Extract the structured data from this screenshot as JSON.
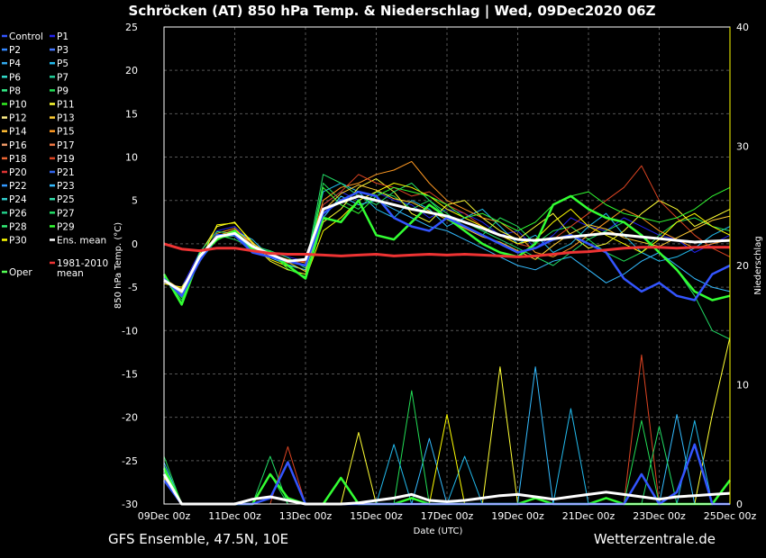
{
  "header": {
    "title": "Schröcken  (AT)  850 hPa Temp. & Niederschlag | Wed, 09Dec2020 06Z"
  },
  "footer": {
    "left": "GFS Ensemble, 47.5N, 10E",
    "right": "Wetterzentrale.de"
  },
  "chart_data": {
    "type": "line",
    "title": "Schröcken  (AT)  850 hPa Temp. & Niederschlag | Wed, 09Dec2020 06Z",
    "xlabel": "Date (UTC)",
    "ylabel": "850 hPa Temp. (°C)",
    "y2label": "Niederschlag",
    "x_ticks": [
      "09Dec 00z",
      "11Dec 00z",
      "13Dec 00z",
      "15Dec 00z",
      "17Dec 00z",
      "19Dec 00z",
      "21Dec 00z",
      "23Dec 00z",
      "25Dec 00z"
    ],
    "y_ticks": [
      25,
      20,
      15,
      10,
      5,
      0,
      -5,
      -10,
      -15,
      -20,
      -25,
      -30
    ],
    "y2_ticks": [
      40,
      30,
      20,
      10,
      0
    ],
    "ylim": [
      -30,
      25
    ],
    "y2lim": [
      0,
      40
    ],
    "grid": true,
    "legend_position": "left",
    "legend": [
      {
        "label": "Control",
        "color": "#3355ff"
      },
      {
        "label": "P1",
        "color": "#2222ee"
      },
      {
        "label": "P2",
        "color": "#3388ff"
      },
      {
        "label": "P3",
        "color": "#4477ff"
      },
      {
        "label": "P4",
        "color": "#33aaee"
      },
      {
        "label": "P5",
        "color": "#22bbee"
      },
      {
        "label": "P6",
        "color": "#33ddcc"
      },
      {
        "label": "P7",
        "color": "#22cc99"
      },
      {
        "label": "P8",
        "color": "#33ee88"
      },
      {
        "label": "P9",
        "color": "#22dd55"
      },
      {
        "label": "P10",
        "color": "#33ee22"
      },
      {
        "label": "P11",
        "color": "#ffff33"
      },
      {
        "label": "P12",
        "color": "#ffee88"
      },
      {
        "label": "P13",
        "color": "#ffcc33"
      },
      {
        "label": "P14",
        "color": "#ffbb33"
      },
      {
        "label": "P15",
        "color": "#ff9922"
      },
      {
        "label": "P16",
        "color": "#ee9966"
      },
      {
        "label": "P17",
        "color": "#ee7744"
      },
      {
        "label": "P18",
        "color": "#ee6633"
      },
      {
        "label": "P19",
        "color": "#dd4422"
      },
      {
        "label": "P20",
        "color": "#dd3333"
      },
      {
        "label": "P21",
        "color": "#3366ee"
      },
      {
        "label": "P22",
        "color": "#3399ff"
      },
      {
        "label": "P23",
        "color": "#33bbff"
      },
      {
        "label": "P24",
        "color": "#33cccc"
      },
      {
        "label": "P25",
        "color": "#33ddaa"
      },
      {
        "label": "P26",
        "color": "#22cc88"
      },
      {
        "label": "P27",
        "color": "#22dd66"
      },
      {
        "label": "P28",
        "color": "#33ee77"
      },
      {
        "label": "P29",
        "color": "#33ff33"
      },
      {
        "label": "P30",
        "color": "#ffff00"
      },
      {
        "label": "Ens. mean",
        "color": "#ffffff"
      },
      {
        "label": "Oper",
        "color": "#55ff55"
      },
      {
        "label": "1981-2010 mean",
        "color": "#ee3333"
      }
    ],
    "x_days": [
      0,
      0.5,
      1,
      1.5,
      2,
      2.5,
      3,
      3.5,
      4,
      4.5,
      5,
      5.5,
      6,
      6.5,
      7,
      7.5,
      8,
      8.5,
      9,
      9.5,
      10,
      10.5,
      11,
      11.5,
      12,
      12.5,
      13,
      13.5,
      14,
      14.5,
      15,
      15.5,
      16
    ],
    "series": [
      {
        "name": "Ens. mean",
        "color": "#ffffff",
        "width": 3,
        "values": [
          -4.2,
          -5.5,
          -1.5,
          0.8,
          1.2,
          -0.3,
          -1.2,
          -2.0,
          -1.8,
          4.0,
          4.8,
          5.5,
          5.0,
          4.5,
          4.0,
          3.6,
          3.2,
          2.5,
          1.8,
          1.0,
          0.5,
          0.4,
          0.6,
          0.8,
          1.0,
          1.2,
          1.0,
          0.8,
          0.6,
          0.4,
          0.2,
          0.3,
          0.4
        ]
      },
      {
        "name": "1981-2010 mean",
        "color": "#ee3333",
        "width": 3,
        "values": [
          0.0,
          -0.6,
          -0.8,
          -0.5,
          -0.5,
          -0.8,
          -1.1,
          -1.2,
          -1.2,
          -1.3,
          -1.4,
          -1.3,
          -1.2,
          -1.4,
          -1.3,
          -1.2,
          -1.3,
          -1.2,
          -1.3,
          -1.4,
          -1.5,
          -1.4,
          -1.2,
          -1.0,
          -0.9,
          -0.7,
          -0.5,
          -0.4,
          -0.4,
          -0.5,
          -0.4,
          -0.4,
          -0.4
        ]
      },
      {
        "name": "Oper",
        "color": "#33ff33",
        "width": 2.5,
        "values": [
          -3.5,
          -7.0,
          -1.5,
          0.5,
          1.5,
          -0.5,
          -1.0,
          -2.5,
          -4.0,
          3.0,
          2.5,
          5.0,
          1.0,
          0.5,
          2.5,
          4.5,
          3.0,
          1.5,
          0.0,
          -1.0,
          -1.5,
          0.0,
          4.5,
          5.5,
          4.0,
          3.0,
          2.5,
          1.0,
          -1.0,
          -3.0,
          -5.5,
          -6.5,
          -6.0
        ]
      },
      {
        "name": "Control",
        "color": "#3355ff",
        "width": 2.5,
        "values": [
          -4.0,
          -6.0,
          -2.0,
          1.0,
          1.0,
          -1.0,
          -1.5,
          -2.0,
          -2.5,
          3.5,
          5.0,
          6.0,
          5.5,
          3.0,
          2.0,
          1.5,
          3.0,
          2.0,
          1.0,
          0.0,
          -1.0,
          -0.5,
          0.5,
          1.0,
          0.0,
          -1.0,
          -4.0,
          -5.5,
          -4.5,
          -6.0,
          -6.5,
          -3.5,
          -2.5
        ]
      },
      {
        "name": "P1",
        "color": "#2222ee",
        "width": 1,
        "values": [
          -4.5,
          -5.0,
          -1.0,
          1.5,
          2.0,
          0.0,
          -1.0,
          -1.5,
          -2.0,
          4.5,
          6.0,
          5.0,
          6.0,
          5.0,
          4.5,
          3.0,
          4.0,
          3.5,
          2.5,
          1.0,
          1.5,
          -0.5,
          1.0,
          3.0,
          2.0,
          1.5,
          3.0,
          2.0,
          1.0,
          0.5,
          -1.0,
          0.0,
          1.0
        ]
      },
      {
        "name": "P5",
        "color": "#22bbee",
        "width": 1,
        "values": [
          -4.0,
          -5.5,
          -2.0,
          0.5,
          1.5,
          0.5,
          -1.5,
          -2.0,
          -2.5,
          6.0,
          7.0,
          6.0,
          4.0,
          3.0,
          5.0,
          4.0,
          2.0,
          3.0,
          4.0,
          2.0,
          0.0,
          1.0,
          -1.0,
          0.0,
          2.0,
          3.5,
          1.0,
          -1.0,
          -2.0,
          -1.5,
          -0.5,
          1.0,
          2.0
        ]
      },
      {
        "name": "P9",
        "color": "#22dd55",
        "width": 1,
        "values": [
          -3.8,
          -6.5,
          -1.5,
          1.0,
          0.5,
          -0.5,
          -1.0,
          -2.5,
          -3.0,
          7.0,
          5.0,
          4.0,
          6.0,
          5.5,
          4.0,
          5.0,
          3.5,
          2.0,
          1.0,
          3.0,
          2.0,
          0.0,
          1.5,
          2.0,
          0.5,
          -1.0,
          -2.0,
          -1.0,
          1.0,
          2.5,
          3.0,
          2.0,
          1.5
        ]
      },
      {
        "name": "P11",
        "color": "#ffff33",
        "width": 1,
        "values": [
          -4.2,
          -5.8,
          -1.2,
          2.0,
          2.5,
          0.0,
          -2.0,
          -3.0,
          -3.5,
          2.5,
          4.0,
          6.5,
          7.5,
          6.0,
          3.5,
          2.5,
          4.5,
          5.0,
          3.0,
          1.5,
          0.5,
          2.0,
          3.5,
          1.0,
          -0.5,
          0.0,
          1.5,
          3.5,
          5.0,
          4.0,
          2.0,
          3.0,
          4.0
        ]
      },
      {
        "name": "P15",
        "color": "#ff9922",
        "width": 1,
        "values": [
          -4.4,
          -5.2,
          -1.8,
          1.2,
          1.8,
          -0.2,
          -1.2,
          -1.8,
          -2.2,
          5.0,
          6.5,
          7.0,
          8.0,
          8.5,
          9.5,
          7.0,
          5.0,
          4.0,
          3.0,
          2.5,
          1.0,
          -1.0,
          -1.5,
          -0.5,
          1.0,
          2.5,
          4.0,
          3.0,
          1.5,
          0.5,
          -0.5,
          0.0,
          0.5
        ]
      },
      {
        "name": "P19",
        "color": "#dd4422",
        "width": 1,
        "values": [
          -4.1,
          -5.6,
          -1.4,
          0.8,
          1.4,
          -0.4,
          -1.4,
          -2.2,
          -2.0,
          4.5,
          6.0,
          8.0,
          7.0,
          6.5,
          5.5,
          6.0,
          4.5,
          3.5,
          2.0,
          1.0,
          0.0,
          -0.5,
          0.5,
          2.0,
          3.5,
          5.0,
          6.5,
          9.0,
          5.0,
          3.0,
          1.0,
          -0.5,
          -1.5
        ]
      },
      {
        "name": "P23",
        "color": "#33bbff",
        "width": 1,
        "values": [
          -4.3,
          -5.4,
          -1.6,
          0.6,
          1.0,
          -0.6,
          -1.6,
          -2.4,
          -3.0,
          3.0,
          5.5,
          4.5,
          5.0,
          4.0,
          3.0,
          2.0,
          1.5,
          0.5,
          -0.5,
          -1.5,
          -2.5,
          -3.0,
          -2.0,
          -1.5,
          -3.0,
          -4.5,
          -3.5,
          -2.0,
          -1.0,
          -2.5,
          -4.0,
          -5.0,
          -5.5
        ]
      },
      {
        "name": "P27",
        "color": "#22dd66",
        "width": 1,
        "values": [
          -3.9,
          -6.2,
          -1.0,
          1.4,
          1.2,
          -0.2,
          -0.8,
          -1.6,
          -2.8,
          8.0,
          7.0,
          5.5,
          4.5,
          6.0,
          7.0,
          5.0,
          3.0,
          2.5,
          1.5,
          0.5,
          -0.5,
          -1.5,
          -2.5,
          -1.0,
          0.5,
          1.5,
          2.5,
          1.0,
          -1.0,
          -3.0,
          -6.0,
          -10.0,
          -11.0
        ]
      },
      {
        "name": "P30",
        "color": "#ffff00",
        "width": 1,
        "values": [
          -4.6,
          -5.0,
          -2.2,
          2.2,
          2.4,
          0.2,
          -1.8,
          -2.6,
          -4.0,
          1.5,
          3.0,
          5.0,
          6.0,
          7.0,
          6.5,
          5.5,
          4.0,
          3.0,
          2.0,
          1.0,
          0.0,
          0.5,
          2.5,
          4.0,
          2.0,
          1.0,
          0.0,
          -1.0,
          0.5,
          2.5,
          3.5,
          2.0,
          1.0
        ]
      },
      {
        "name": "P13",
        "color": "#ffcc33",
        "width": 1,
        "values": [
          -4.0,
          -5.3,
          -1.7,
          0.9,
          1.6,
          0.1,
          -1.3,
          -2.1,
          -3.2,
          3.8,
          5.8,
          6.8,
          6.2,
          5.2,
          4.8,
          3.8,
          2.8,
          1.8,
          0.8,
          0.2,
          -0.8,
          -1.8,
          -0.2,
          1.2,
          2.2,
          1.7,
          0.7,
          0.2,
          -0.3,
          0.7,
          1.7,
          2.7,
          3.2
        ]
      },
      {
        "name": "P29",
        "color": "#33ff33",
        "width": 1,
        "values": [
          -3.7,
          -6.8,
          -1.3,
          0.7,
          0.9,
          -0.7,
          -0.9,
          -2.9,
          -3.8,
          6.5,
          4.5,
          3.5,
          5.5,
          6.5,
          6.0,
          5.5,
          4.5,
          3.0,
          3.5,
          2.5,
          1.5,
          2.5,
          4.5,
          5.5,
          6.0,
          4.5,
          3.5,
          3.0,
          2.5,
          3.0,
          4.0,
          5.5,
          6.5
        ]
      }
    ],
    "precip_series": [
      {
        "name": "Ens. mean",
        "color": "#ffffff",
        "width": 3,
        "values": [
          2.5,
          0.0,
          0.0,
          0.0,
          0.0,
          0.4,
          0.6,
          0.3,
          0.0,
          0.0,
          0.0,
          0.1,
          0.3,
          0.5,
          0.8,
          0.3,
          0.2,
          0.3,
          0.5,
          0.7,
          0.8,
          0.6,
          0.4,
          0.6,
          0.8,
          1.0,
          0.8,
          0.6,
          0.4,
          0.6,
          0.7,
          0.8,
          0.9
        ]
      },
      {
        "name": "Oper",
        "color": "#33ff33",
        "width": 2.5,
        "values": [
          3.0,
          0.0,
          0.0,
          0.0,
          0.0,
          0.0,
          2.5,
          0.5,
          0.0,
          0.0,
          2.2,
          0.0,
          0.0,
          0.0,
          0.5,
          0.0,
          0.0,
          0.0,
          0.0,
          0.0,
          0.0,
          0.5,
          0.0,
          0.0,
          0.0,
          0.5,
          0.0,
          0.0,
          0.0,
          0.0,
          0.0,
          0.0,
          2.0
        ]
      },
      {
        "name": "Control",
        "color": "#3355ff",
        "width": 2.5,
        "values": [
          2.0,
          0.0,
          0.0,
          0.0,
          0.0,
          0.0,
          0.5,
          3.5,
          0.0,
          0.0,
          0.0,
          0.0,
          0.0,
          0.0,
          0.0,
          0.0,
          0.0,
          0.0,
          0.0,
          0.0,
          0.0,
          0.0,
          0.0,
          0.0,
          0.0,
          0.0,
          0.0,
          2.5,
          0.0,
          1.0,
          5.0,
          0.0,
          0.0
        ]
      },
      {
        "name": "P11",
        "color": "#ffff33",
        "width": 1,
        "values": [
          2.5,
          0.0,
          0.0,
          0.0,
          0.0,
          0.0,
          0.0,
          0.0,
          0.0,
          0.0,
          0.0,
          6.0,
          0.0,
          0.0,
          0.0,
          0.0,
          0.0,
          0.0,
          0.0,
          11.5,
          0.0,
          0.0,
          0.0,
          0.0,
          0.0,
          0.0,
          0.0,
          0.0,
          0.0,
          0.0,
          0.0,
          7.5,
          14.0
        ]
      },
      {
        "name": "P19",
        "color": "#dd4422",
        "width": 1,
        "values": [
          2.0,
          0.0,
          0.0,
          0.0,
          0.0,
          0.0,
          0.0,
          4.8,
          0.0,
          0.0,
          0.0,
          0.0,
          0.0,
          0.0,
          0.0,
          0.0,
          0.0,
          0.0,
          0.0,
          0.0,
          0.0,
          0.0,
          0.0,
          0.0,
          0.0,
          0.0,
          0.0,
          12.5,
          0.0,
          0.0,
          0.0,
          0.0,
          0.0
        ]
      },
      {
        "name": "P23",
        "color": "#33bbff",
        "width": 1,
        "values": [
          3.5,
          0.0,
          0.0,
          0.0,
          0.0,
          0.0,
          0.0,
          0.0,
          0.0,
          0.0,
          0.0,
          0.0,
          0.0,
          0.0,
          0.0,
          5.5,
          0.0,
          0.0,
          0.0,
          0.0,
          0.0,
          11.5,
          0.0,
          0.0,
          0.0,
          0.0,
          0.0,
          0.0,
          0.0,
          7.5,
          0.0,
          0.0,
          0.0
        ]
      },
      {
        "name": "P9",
        "color": "#22dd55",
        "width": 1,
        "values": [
          4.0,
          0.0,
          0.0,
          0.0,
          0.0,
          0.0,
          2.5,
          0.0,
          0.0,
          0.0,
          0.0,
          0.0,
          0.0,
          0.0,
          9.5,
          0.0,
          0.0,
          0.0,
          0.0,
          0.0,
          0.0,
          0.0,
          0.0,
          0.0,
          0.0,
          0.0,
          0.0,
          7.0,
          0.0,
          0.0,
          0.0,
          0.0,
          0.0
        ]
      },
      {
        "name": "P5",
        "color": "#22bbee",
        "width": 1,
        "values": [
          2.8,
          0.0,
          0.0,
          0.0,
          0.0,
          0.0,
          0.0,
          0.0,
          0.0,
          0.0,
          0.0,
          0.0,
          0.0,
          5.0,
          0.0,
          0.0,
          0.0,
          4.0,
          0.0,
          0.0,
          0.0,
          0.0,
          0.0,
          8.0,
          0.0,
          0.0,
          0.0,
          0.0,
          0.0,
          0.0,
          7.0,
          0.0,
          0.0
        ]
      },
      {
        "name": "P27",
        "color": "#22dd66",
        "width": 1,
        "values": [
          3.2,
          0.0,
          0.0,
          0.0,
          0.0,
          0.0,
          4.0,
          0.0,
          0.0,
          0.0,
          0.0,
          0.0,
          0.0,
          0.0,
          0.0,
          0.0,
          0.0,
          0.0,
          0.0,
          0.0,
          0.0,
          0.0,
          0.0,
          0.0,
          0.0,
          0.0,
          0.0,
          0.0,
          6.5,
          0.0,
          0.0,
          0.0,
          0.0
        ]
      },
      {
        "name": "P30",
        "color": "#ffff00",
        "width": 1,
        "values": [
          2.2,
          0.0,
          0.0,
          0.0,
          0.0,
          0.0,
          0.0,
          0.0,
          0.0,
          0.0,
          0.0,
          0.0,
          0.0,
          0.0,
          0.0,
          0.0,
          7.5,
          0.0,
          0.0,
          0.0,
          0.0,
          0.0,
          0.0,
          0.0,
          0.0,
          0.0,
          0.0,
          0.0,
          0.0,
          0.0,
          0.0,
          0.0,
          0.0
        ]
      }
    ]
  }
}
